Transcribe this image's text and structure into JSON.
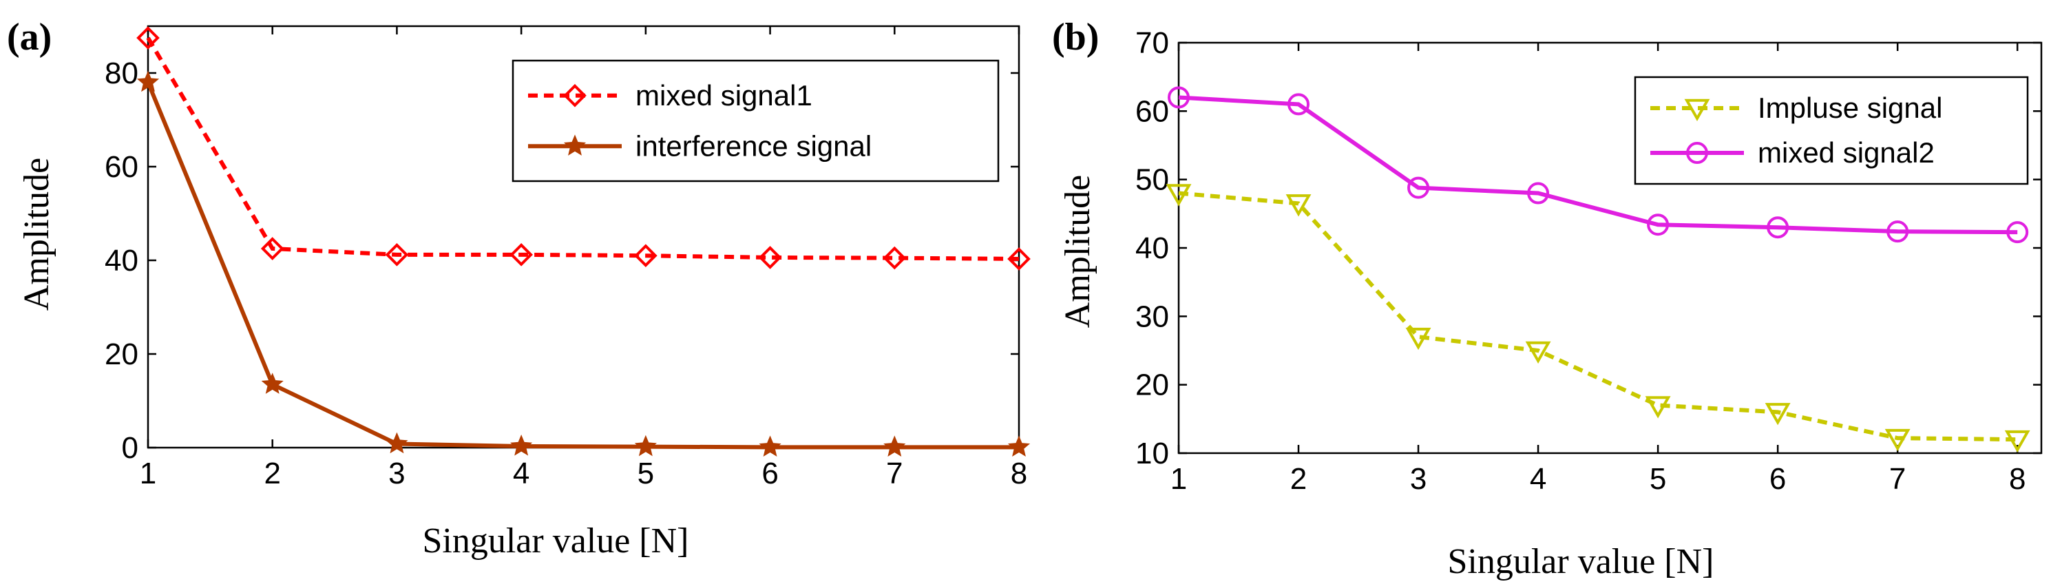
{
  "chart_data": [
    {
      "type": "line",
      "panel_label": "(a)",
      "title": "",
      "xlabel": "Singular value [N]",
      "ylabel": "Amplitude",
      "xlim": [
        1,
        8
      ],
      "ylim": [
        0,
        90
      ],
      "xticks": [
        1,
        2,
        3,
        4,
        5,
        6,
        7,
        8
      ],
      "yticks": [
        0,
        20,
        40,
        60,
        80
      ],
      "grid": false,
      "legend_position": "top-right",
      "x": [
        1,
        2,
        3,
        4,
        5,
        6,
        7,
        8
      ],
      "series": [
        {
          "name": "mixed signal1",
          "values": [
            87.5,
            42.5,
            41.2,
            41.2,
            41.0,
            40.6,
            40.5,
            40.3
          ],
          "color": "#ff0000",
          "dash": "dashed",
          "marker": "diamond"
        },
        {
          "name": "interference signal",
          "values": [
            78.0,
            13.5,
            0.8,
            0.3,
            0.2,
            0.1,
            0.1,
            0.1
          ],
          "color": "#b23c00",
          "dash": "solid",
          "marker": "star"
        }
      ]
    },
    {
      "type": "line",
      "panel_label": "(b)",
      "title": "",
      "xlabel": "Singular value [N]",
      "ylabel": "Amplitude",
      "xlim": [
        1,
        8.2
      ],
      "ylim": [
        10,
        70
      ],
      "xticks": [
        1,
        2,
        3,
        4,
        5,
        6,
        7,
        8
      ],
      "yticks": [
        10,
        20,
        30,
        40,
        50,
        60,
        70
      ],
      "grid": false,
      "legend_position": "top-right",
      "x": [
        1,
        2,
        3,
        4,
        5,
        6,
        7,
        8
      ],
      "series": [
        {
          "name": "Impluse signal",
          "values": [
            48.0,
            46.5,
            27.0,
            25.0,
            17.0,
            16.0,
            12.2,
            12.0
          ],
          "color": "#c8c800",
          "dash": "dashed",
          "marker": "triangle-down"
        },
        {
          "name": "mixed signal2",
          "values": [
            62.0,
            61.0,
            48.8,
            48.0,
            43.4,
            43.0,
            42.4,
            42.3
          ],
          "color": "#e020e0",
          "dash": "solid",
          "marker": "circle"
        }
      ]
    }
  ]
}
